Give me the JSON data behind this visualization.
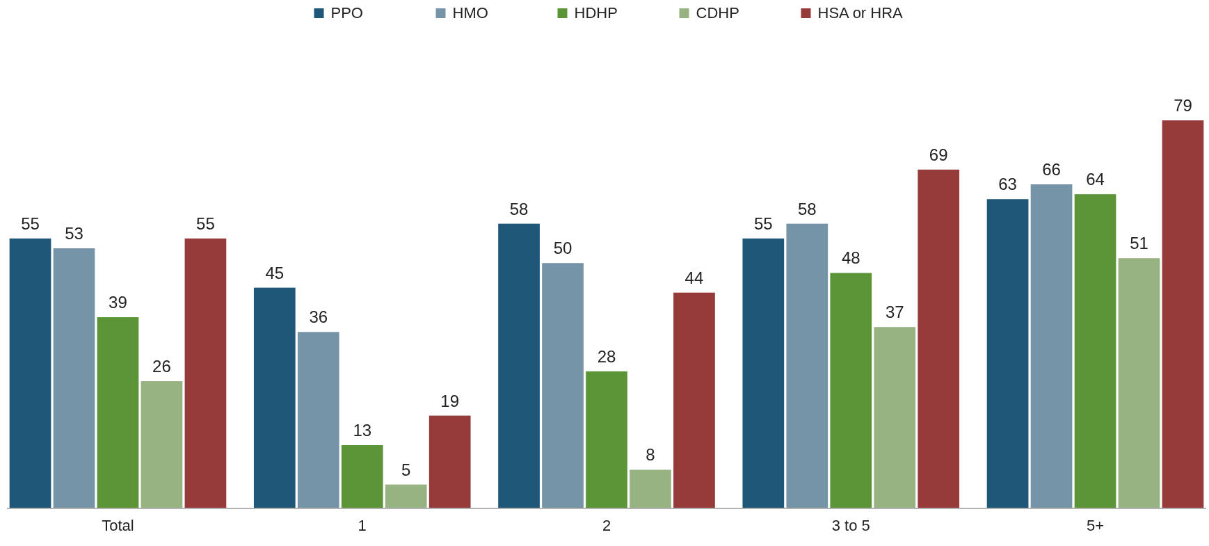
{
  "chart_data": {
    "type": "bar",
    "categories": [
      "Total",
      "1",
      "2",
      "3 to 5",
      "5+"
    ],
    "series": [
      {
        "name": "PPO",
        "color": "#1f5779",
        "values": [
          55,
          45,
          58,
          55,
          63
        ]
      },
      {
        "name": "HMO",
        "color": "#7694a8",
        "values": [
          53,
          36,
          50,
          58,
          66
        ]
      },
      {
        "name": "HDHP",
        "color": "#5b9538",
        "values": [
          39,
          13,
          28,
          48,
          64
        ]
      },
      {
        "name": "CDHP",
        "color": "#97b382",
        "values": [
          26,
          5,
          8,
          37,
          51
        ]
      },
      {
        "name": "HSA or HRA",
        "color": "#973a3a",
        "values": [
          55,
          19,
          44,
          69,
          79
        ]
      }
    ],
    "data_labels": true,
    "legend": "top",
    "tick_labels": "x"
  }
}
